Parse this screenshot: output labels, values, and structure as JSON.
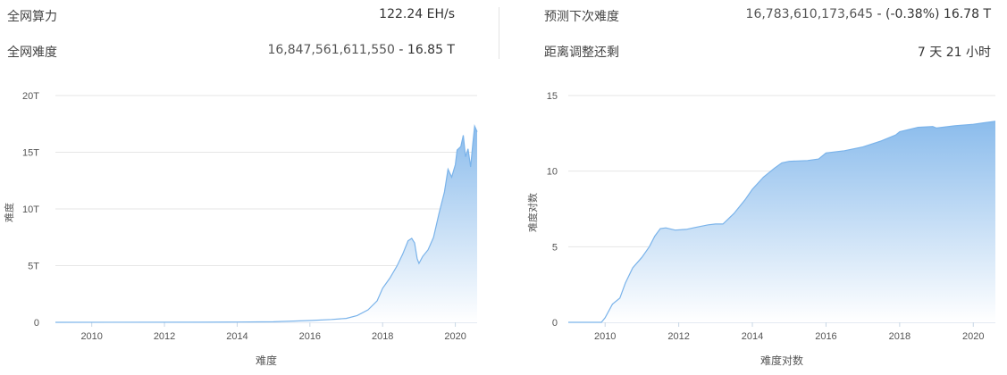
{
  "stats": {
    "hashrate_label": "全网算力",
    "hashrate_value": "122.24 EH/s",
    "difficulty_label": "全网难度",
    "difficulty_value": "16,847,561,611,550",
    "difficulty_short": " - 16.85 T",
    "next_label": "预测下次难度",
    "next_value": "16,783,610,173,645",
    "next_change": " - (-0.38%) 16.78 T",
    "adjust_label": "距离调整还剩",
    "adjust_value": "7 天 21 小时"
  },
  "colors": {
    "area_top": "#8bbcec",
    "area_bottom": "#ffffff",
    "line": "#7ab3ea",
    "grid": "#e6e6e6",
    "axis": "#c8d6e5"
  },
  "chart_data": [
    {
      "type": "area",
      "ylabel": "难度",
      "xlabel": "难度",
      "xlim": [
        2009.0,
        2020.6
      ],
      "ylim": [
        0,
        20
      ],
      "yticks": [
        0,
        5,
        10,
        15,
        20
      ],
      "ytick_labels": [
        "0",
        "5T",
        "10T",
        "15T",
        "20T"
      ],
      "xticks": [
        2010,
        2012,
        2014,
        2016,
        2018,
        2020
      ],
      "grid": true,
      "series": [
        {
          "unit": "T",
          "points": [
            [
              2009.0,
              0.0
            ],
            [
              2013.0,
              0.01
            ],
            [
              2014.0,
              0.02
            ],
            [
              2015.0,
              0.05
            ],
            [
              2016.0,
              0.16
            ],
            [
              2016.6,
              0.25
            ],
            [
              2017.0,
              0.35
            ],
            [
              2017.3,
              0.6
            ],
            [
              2017.6,
              1.1
            ],
            [
              2017.85,
              1.9
            ],
            [
              2018.0,
              3.0
            ],
            [
              2018.2,
              3.9
            ],
            [
              2018.4,
              5.0
            ],
            [
              2018.55,
              6.0
            ],
            [
              2018.7,
              7.2
            ],
            [
              2018.8,
              7.4
            ],
            [
              2018.88,
              7.0
            ],
            [
              2018.95,
              5.6
            ],
            [
              2019.0,
              5.2
            ],
            [
              2019.1,
              5.8
            ],
            [
              2019.25,
              6.4
            ],
            [
              2019.4,
              7.5
            ],
            [
              2019.55,
              9.6
            ],
            [
              2019.7,
              11.5
            ],
            [
              2019.8,
              13.5
            ],
            [
              2019.9,
              12.8
            ],
            [
              2020.0,
              13.9
            ],
            [
              2020.05,
              15.2
            ],
            [
              2020.15,
              15.5
            ],
            [
              2020.22,
              16.5
            ],
            [
              2020.28,
              14.6
            ],
            [
              2020.35,
              15.3
            ],
            [
              2020.42,
              13.7
            ],
            [
              2020.48,
              15.7
            ],
            [
              2020.53,
              17.3
            ],
            [
              2020.6,
              16.8
            ]
          ]
        }
      ]
    },
    {
      "type": "area",
      "ylabel": "难度对数",
      "xlabel": "难度对数",
      "xlim": [
        2009.0,
        2020.6
      ],
      "ylim": [
        0,
        15
      ],
      "yticks": [
        0,
        5,
        10,
        15
      ],
      "ytick_labels": [
        "0",
        "5",
        "10",
        "15"
      ],
      "xticks": [
        2010,
        2012,
        2014,
        2016,
        2018,
        2020
      ],
      "grid": true,
      "series": [
        {
          "points": [
            [
              2009.0,
              0.0
            ],
            [
              2009.9,
              0.0
            ],
            [
              2010.0,
              0.3
            ],
            [
              2010.2,
              1.2
            ],
            [
              2010.4,
              1.6
            ],
            [
              2010.55,
              2.6
            ],
            [
              2010.75,
              3.6
            ],
            [
              2011.0,
              4.3
            ],
            [
              2011.2,
              5.0
            ],
            [
              2011.35,
              5.7
            ],
            [
              2011.5,
              6.2
            ],
            [
              2011.65,
              6.25
            ],
            [
              2011.9,
              6.1
            ],
            [
              2012.2,
              6.15
            ],
            [
              2012.5,
              6.3
            ],
            [
              2012.8,
              6.45
            ],
            [
              2013.0,
              6.5
            ],
            [
              2013.2,
              6.5
            ],
            [
              2013.5,
              7.2
            ],
            [
              2013.8,
              8.1
            ],
            [
              2014.0,
              8.8
            ],
            [
              2014.3,
              9.6
            ],
            [
              2014.6,
              10.2
            ],
            [
              2014.8,
              10.55
            ],
            [
              2015.0,
              10.65
            ],
            [
              2015.5,
              10.7
            ],
            [
              2015.8,
              10.8
            ],
            [
              2016.0,
              11.2
            ],
            [
              2016.5,
              11.35
            ],
            [
              2017.0,
              11.6
            ],
            [
              2017.5,
              12.0
            ],
            [
              2017.9,
              12.4
            ],
            [
              2018.0,
              12.6
            ],
            [
              2018.5,
              12.9
            ],
            [
              2018.9,
              12.95
            ],
            [
              2019.0,
              12.85
            ],
            [
              2019.5,
              13.0
            ],
            [
              2020.0,
              13.1
            ],
            [
              2020.3,
              13.2
            ],
            [
              2020.6,
              13.3
            ]
          ]
        }
      ]
    }
  ]
}
